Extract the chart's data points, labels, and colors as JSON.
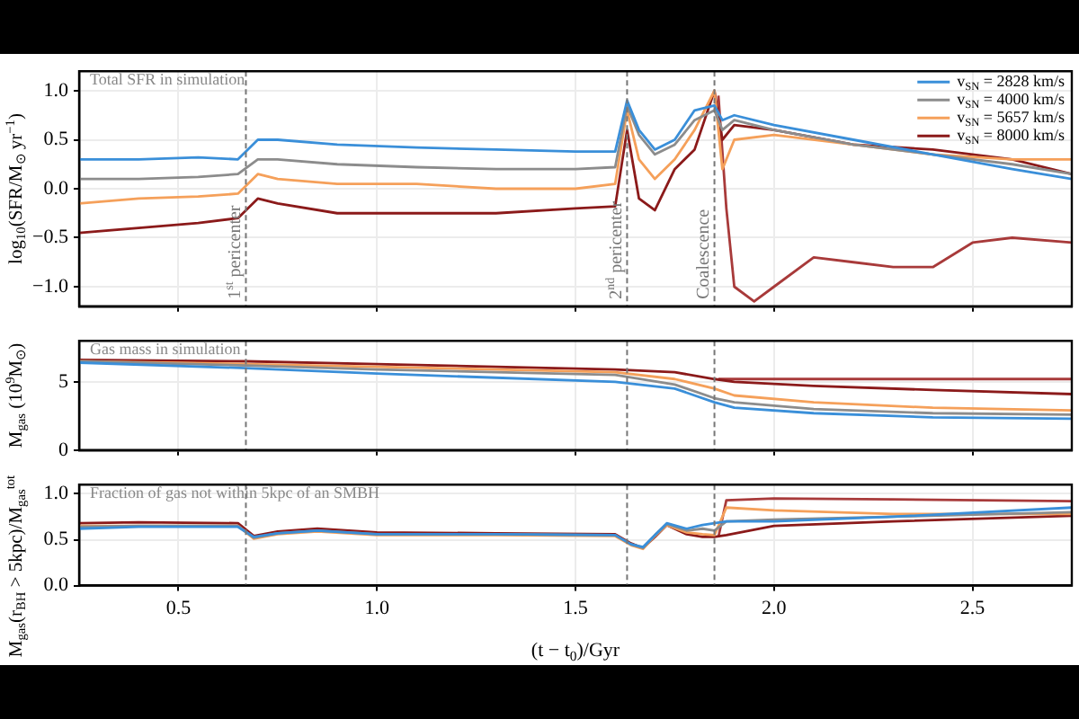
{
  "chart_data": [
    {
      "type": "line",
      "ylabel": "log$_{10}$(SFR/M$_{⊙}$ yr$^{−1}$)",
      "annotations": [
        "Total SFR in simulation"
      ],
      "legend": "top right",
      "grid": true,
      "tick_labels": "y",
      "xlim": [
        0.25,
        2.75
      ],
      "xticks": [
        0.5,
        1,
        1.5,
        2,
        2.5
      ],
      "ylim": [
        -1.2,
        1.2
      ],
      "yticks": [
        {
          "value": -1,
          "label": "−1.0"
        },
        {
          "value": -0.5,
          "label": "−0.5"
        },
        {
          "value": 0,
          "label": "0.0"
        },
        {
          "value": 0.5,
          "label": "0.5"
        },
        {
          "value": 1,
          "label": "1.0"
        }
      ],
      "ref_lines": [
        {
          "axis": "x",
          "value": 0.67,
          "label": "1$^{st}$ pericenter",
          "color": "#777777",
          "line_style": "dashed"
        },
        {
          "axis": "x",
          "value": 1.63,
          "label": "2$^{nd}$ pericenter",
          "color": "#777777",
          "line_style": "dashed"
        },
        {
          "axis": "x",
          "value": 1.85,
          "label": "Coalescence",
          "color": "#777777",
          "line_style": "dashed"
        }
      ],
      "x": [
        0.25,
        0.4,
        0.55,
        0.65,
        0.7,
        0.75,
        0.9,
        1.1,
        1.3,
        1.5,
        1.6,
        1.63,
        1.66,
        1.7,
        1.75,
        1.8,
        1.85,
        1.87,
        1.9,
        2.0,
        2.2,
        2.4,
        2.6,
        2.75
      ],
      "series": [
        {
          "name": "v$_{SN}$ = 2828 km/s",
          "color": "#3a8fd9",
          "values": [
            0.3,
            0.3,
            0.32,
            0.3,
            0.5,
            0.5,
            0.45,
            0.42,
            0.4,
            0.38,
            0.38,
            0.9,
            0.6,
            0.4,
            0.5,
            0.8,
            0.85,
            0.7,
            0.75,
            0.65,
            0.5,
            0.35,
            0.2,
            0.1
          ]
        },
        {
          "name": "v$_{SN}$ = 4000 km/s",
          "color": "#8c8c8c",
          "values": [
            0.1,
            0.1,
            0.12,
            0.15,
            0.3,
            0.3,
            0.25,
            0.22,
            0.2,
            0.2,
            0.22,
            0.85,
            0.55,
            0.35,
            0.45,
            0.7,
            0.8,
            0.6,
            0.7,
            0.6,
            0.45,
            0.35,
            0.25,
            0.15
          ]
        },
        {
          "name": "v$_{SN}$ = 5657 km/s",
          "color": "#f5a05a",
          "values": [
            -0.15,
            -0.1,
            -0.08,
            -0.05,
            0.15,
            0.1,
            0.05,
            0.05,
            0,
            0,
            0.05,
            0.8,
            0.3,
            0.1,
            0.3,
            0.6,
            1,
            0.2,
            0.5,
            0.55,
            0.45,
            0.35,
            0.3,
            0.3
          ]
        },
        {
          "name": "v$_{SN}$ = 8000 km/s",
          "color": "#8b1a1a",
          "values": [
            -0.45,
            -0.4,
            -0.35,
            -0.3,
            -0.1,
            -0.15,
            -0.25,
            -0.25,
            -0.25,
            -0.2,
            -0.18,
            0.6,
            -0.1,
            -0.22,
            0.2,
            0.4,
            1,
            0.5,
            0.65,
            0.6,
            0.45,
            0.4,
            0.3,
            0.15
          ]
        },
        {
          "color": "#a83a3a",
          "x": [
            1.86,
            1.88,
            1.9,
            1.95,
            2.0,
            2.1,
            2.2,
            2.3,
            2.4,
            2.5,
            2.6,
            2.75
          ],
          "values": [
            0.95,
            -0.2,
            -1.0,
            -1.15,
            -1.0,
            -0.7,
            -0.75,
            -0.8,
            -0.8,
            -0.55,
            -0.5,
            -0.55
          ]
        }
      ]
    },
    {
      "type": "line",
      "ylabel": "M$_{gas}$ (10$^{9}$M$_{⊙}$)",
      "annotations": [
        "Gas mass in simulation"
      ],
      "grid": true,
      "tick_labels": "y",
      "xlim": [
        0.25,
        2.75
      ],
      "xticks": [
        0.5,
        1,
        1.5,
        2,
        2.5
      ],
      "ylim": [
        0,
        8
      ],
      "yticks": [
        0,
        5
      ],
      "ref_lines": [
        {
          "axis": "x",
          "value": 0.67,
          "color": "#777777",
          "line_style": "dashed"
        },
        {
          "axis": "x",
          "value": 1.63,
          "color": "#777777",
          "line_style": "dashed"
        },
        {
          "axis": "x",
          "value": 1.85,
          "color": "#777777",
          "line_style": "dashed"
        }
      ],
      "x": [
        0.25,
        0.67,
        1.0,
        1.3,
        1.6,
        1.75,
        1.85,
        1.9,
        2.1,
        2.4,
        2.75
      ],
      "series": [
        {
          "color": "#3a8fd9",
          "values": [
            6.4,
            6.0,
            5.6,
            5.3,
            5.0,
            4.5,
            3.5,
            3.1,
            2.7,
            2.4,
            2.3
          ]
        },
        {
          "color": "#8c8c8c",
          "values": [
            6.5,
            6.2,
            5.9,
            5.7,
            5.5,
            4.8,
            3.8,
            3.5,
            3.0,
            2.7,
            2.6
          ]
        },
        {
          "color": "#f5a05a",
          "values": [
            6.5,
            6.3,
            6.1,
            5.9,
            5.7,
            5.2,
            4.5,
            4.0,
            3.5,
            3.1,
            2.9
          ]
        },
        {
          "color": "#8b1a1a",
          "values": [
            6.6,
            6.5,
            6.3,
            6.1,
            5.9,
            5.7,
            5.2,
            5.0,
            4.7,
            4.4,
            4.1
          ]
        },
        {
          "color": "#a83a3a",
          "x": [
            1.86,
            2.75
          ],
          "values": [
            5.2,
            5.2
          ]
        }
      ]
    },
    {
      "type": "line",
      "ylabel": "M$_{gas}$(r$_{BH}$ > 5kpc)/M$_{gas}$$^{tot}$",
      "xlabel": "(t − t$_{0}$)/Gyr",
      "annotations": [
        "Fraction of gas not within 5kpc of an SMBH"
      ],
      "grid": true,
      "xlim": [
        0.25,
        2.75
      ],
      "xticks": [
        {
          "value": 0.5,
          "label": "0.5"
        },
        {
          "value": 1,
          "label": "1.0"
        },
        {
          "value": 1.5,
          "label": "1.5"
        },
        {
          "value": 2,
          "label": "2.0"
        },
        {
          "value": 2.5,
          "label": "2.5"
        }
      ],
      "ylim": [
        0,
        1.1
      ],
      "yticks": [
        {
          "value": 0,
          "label": "0.0"
        },
        {
          "value": 0.5,
          "label": "0.5"
        },
        {
          "value": 1,
          "label": "1.0"
        }
      ],
      "ref_lines": [
        {
          "axis": "x",
          "value": 0.67,
          "color": "#777777",
          "line_style": "dashed"
        },
        {
          "axis": "x",
          "value": 1.63,
          "color": "#777777",
          "line_style": "dashed"
        },
        {
          "axis": "x",
          "value": 1.85,
          "color": "#777777",
          "line_style": "dashed"
        }
      ],
      "x": [
        0.25,
        0.4,
        0.65,
        0.69,
        0.75,
        0.85,
        1.0,
        1.3,
        1.6,
        1.64,
        1.67,
        1.7,
        1.73,
        1.78,
        1.82,
        1.85,
        1.88,
        2.0,
        2.3,
        2.75
      ],
      "series": [
        {
          "color": "#3a8fd9",
          "values": [
            0.62,
            0.64,
            0.64,
            0.53,
            0.57,
            0.6,
            0.56,
            0.56,
            0.55,
            0.45,
            0.42,
            0.55,
            0.68,
            0.62,
            0.66,
            0.68,
            0.7,
            0.7,
            0.75,
            0.85
          ]
        },
        {
          "color": "#8c8c8c",
          "values": [
            0.64,
            0.65,
            0.65,
            0.52,
            0.57,
            0.6,
            0.56,
            0.56,
            0.55,
            0.45,
            0.41,
            0.55,
            0.67,
            0.6,
            0.62,
            0.6,
            0.7,
            0.72,
            0.75,
            0.8
          ]
        },
        {
          "color": "#f5a05a",
          "values": [
            0.65,
            0.65,
            0.65,
            0.51,
            0.56,
            0.59,
            0.55,
            0.55,
            0.54,
            0.44,
            0.4,
            0.54,
            0.66,
            0.58,
            0.56,
            0.55,
            0.85,
            0.82,
            0.78,
            0.78
          ]
        },
        {
          "color": "#8b1a1a",
          "values": [
            0.68,
            0.69,
            0.68,
            0.54,
            0.59,
            0.62,
            0.58,
            0.57,
            0.56,
            0.46,
            0.41,
            0.53,
            0.66,
            0.56,
            0.53,
            0.53,
            0.55,
            0.65,
            0.7,
            0.76
          ]
        },
        {
          "color": "#a83a3a",
          "x": [
            1.86,
            1.88,
            2.0,
            2.3,
            2.75
          ],
          "values": [
            0.53,
            0.93,
            0.95,
            0.94,
            0.92
          ]
        }
      ]
    }
  ]
}
